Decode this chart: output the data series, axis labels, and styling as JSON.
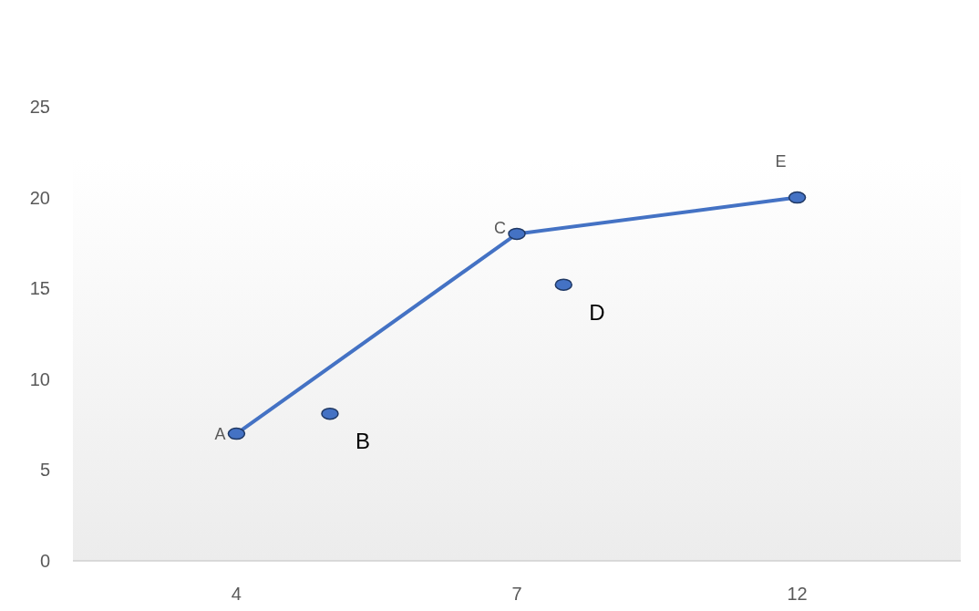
{
  "chart_data": {
    "type": "line",
    "categories": [
      null,
      null,
      null,
      "4",
      null,
      null,
      null,
      null,
      null,
      "7",
      null,
      null,
      null,
      null,
      null,
      "12",
      null,
      null,
      null
    ],
    "ylim": [
      0,
      25
    ],
    "yticks": [
      0,
      5,
      10,
      15,
      20,
      25
    ],
    "grid": false,
    "marker": "circle",
    "line_style": "solid",
    "series": [
      {
        "type": "line",
        "color": "#4472c4",
        "values": [
          null,
          null,
          null,
          7,
          null,
          null,
          null,
          null,
          null,
          18,
          null,
          null,
          null,
          null,
          null,
          20,
          null,
          null,
          null
        ],
        "value_labels": [
          null,
          null,
          null,
          "A",
          null,
          null,
          null,
          null,
          null,
          "C",
          null,
          null,
          null,
          null,
          null,
          "E",
          null,
          null,
          null
        ]
      },
      {
        "type": "scatter",
        "color": "#4472c4",
        "values": [
          null,
          null,
          null,
          null,
          null,
          8.1,
          null,
          null,
          null,
          null,
          15.2,
          null,
          null,
          null,
          null,
          null,
          null,
          null,
          null
        ],
        "value_labels": [
          null,
          null,
          null,
          null,
          null,
          "B",
          null,
          null,
          null,
          null,
          "D",
          null,
          null,
          null,
          null,
          null,
          null,
          null,
          null
        ]
      }
    ]
  }
}
